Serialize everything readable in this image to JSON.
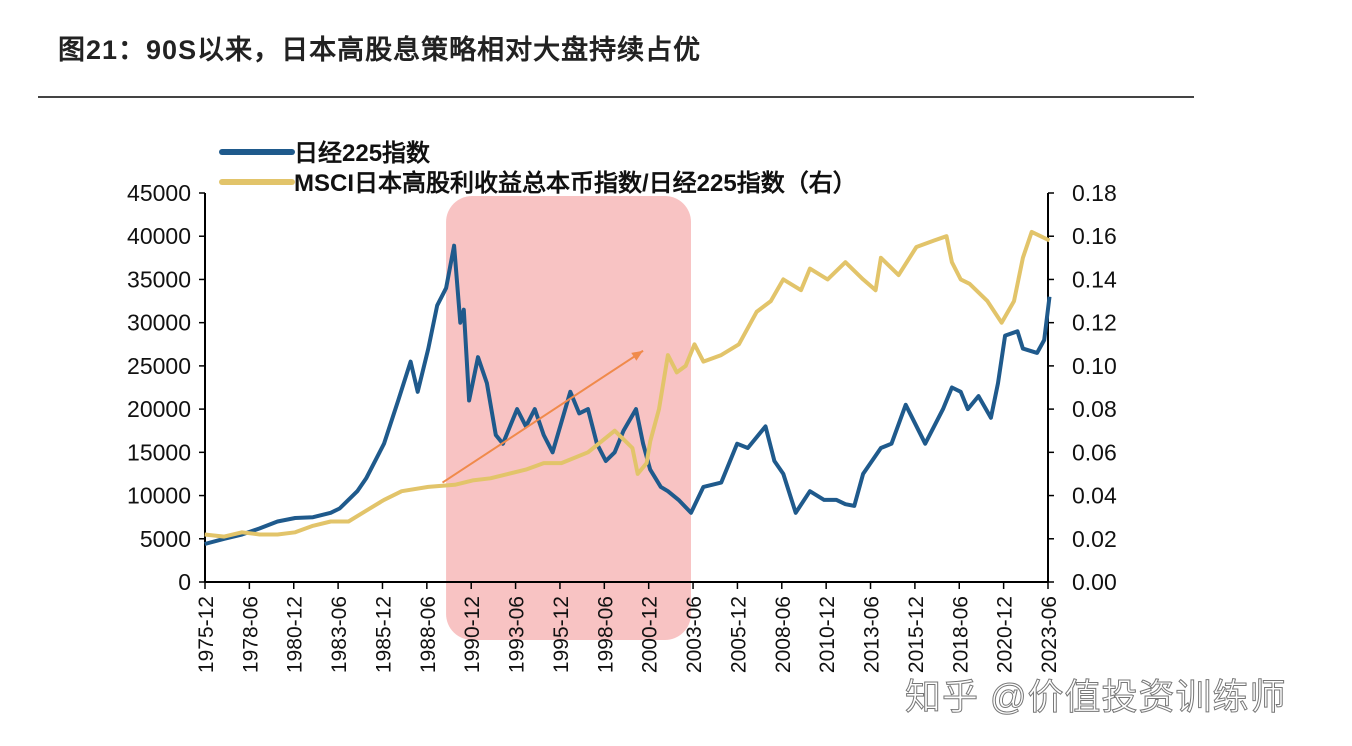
{
  "header": {
    "title": "图21：90S以来，日本高股息策略相对大盘持续占优"
  },
  "watermark": "知乎 @价值投资训练师",
  "chart_data": {
    "type": "line",
    "title": "图21：90S以来，日本高股息策略相对大盘持续占优",
    "xlabel": "",
    "ylabel": "",
    "y2label": "",
    "x_ticks": [
      "1975-12",
      "1978-06",
      "1980-12",
      "1983-06",
      "1985-12",
      "1988-06",
      "1990-12",
      "1993-06",
      "1995-12",
      "1998-06",
      "2000-12",
      "2003-06",
      "2005-12",
      "2008-06",
      "2010-12",
      "2013-06",
      "2015-12",
      "2018-06",
      "2020-12",
      "2023-06"
    ],
    "xlim": [
      "1975-12",
      "2023-06"
    ],
    "ylim": [
      0,
      45000
    ],
    "y_ticks": [
      "0",
      "5000",
      "10000",
      "15000",
      "20000",
      "25000",
      "30000",
      "35000",
      "40000",
      "45000"
    ],
    "y2lim": [
      0,
      0.18
    ],
    "y2_ticks": [
      "0.00",
      "0.02",
      "0.04",
      "0.06",
      "0.08",
      "0.10",
      "0.12",
      "0.14",
      "0.16",
      "0.18"
    ],
    "grid": false,
    "legend_placement": "top-left",
    "series": [
      {
        "name": "日经225指数",
        "axis": "left",
        "color": "#1f5a8c",
        "points": [
          [
            1975.9,
            4400
          ],
          [
            1977,
            5000
          ],
          [
            1978,
            5500
          ],
          [
            1979,
            6200
          ],
          [
            1980,
            7000
          ],
          [
            1981,
            7400
          ],
          [
            1982,
            7500
          ],
          [
            1983,
            8000
          ],
          [
            1983.5,
            8500
          ],
          [
            1984.5,
            10500
          ],
          [
            1985,
            12000
          ],
          [
            1986,
            16000
          ],
          [
            1986.8,
            21000
          ],
          [
            1987.5,
            25500
          ],
          [
            1987.9,
            22000
          ],
          [
            1988.5,
            27000
          ],
          [
            1989,
            32000
          ],
          [
            1989.5,
            34000
          ],
          [
            1989.95,
            38900
          ],
          [
            1990.3,
            30000
          ],
          [
            1990.5,
            31500
          ],
          [
            1990.8,
            21000
          ],
          [
            1991.3,
            26000
          ],
          [
            1991.8,
            23000
          ],
          [
            1992.3,
            17000
          ],
          [
            1992.7,
            16000
          ],
          [
            1993.5,
            20000
          ],
          [
            1994,
            18000
          ],
          [
            1994.5,
            20000
          ],
          [
            1995,
            17000
          ],
          [
            1995.5,
            15000
          ],
          [
            1996.5,
            22000
          ],
          [
            1997,
            19500
          ],
          [
            1997.5,
            20000
          ],
          [
            1998,
            16000
          ],
          [
            1998.5,
            14000
          ],
          [
            1999,
            15000
          ],
          [
            1999.5,
            17500
          ],
          [
            2000.2,
            20000
          ],
          [
            2000.6,
            16000
          ],
          [
            2001,
            13000
          ],
          [
            2001.6,
            11000
          ],
          [
            2002,
            10500
          ],
          [
            2002.6,
            9500
          ],
          [
            2003.3,
            8000
          ],
          [
            2004,
            11000
          ],
          [
            2005,
            11500
          ],
          [
            2005.9,
            16000
          ],
          [
            2006.5,
            15500
          ],
          [
            2007.5,
            18000
          ],
          [
            2008,
            14000
          ],
          [
            2008.5,
            12500
          ],
          [
            2009.2,
            8000
          ],
          [
            2010,
            10500
          ],
          [
            2010.8,
            9500
          ],
          [
            2011.5,
            9500
          ],
          [
            2012,
            9000
          ],
          [
            2012.5,
            8800
          ],
          [
            2013,
            12500
          ],
          [
            2014,
            15500
          ],
          [
            2014.6,
            16000
          ],
          [
            2015.4,
            20500
          ],
          [
            2016.5,
            16000
          ],
          [
            2017.5,
            20000
          ],
          [
            2018,
            22500
          ],
          [
            2018.5,
            22000
          ],
          [
            2018.9,
            20000
          ],
          [
            2019.5,
            21500
          ],
          [
            2020.2,
            19000
          ],
          [
            2020.6,
            23000
          ],
          [
            2021,
            28500
          ],
          [
            2021.7,
            29000
          ],
          [
            2022,
            27000
          ],
          [
            2022.8,
            26500
          ],
          [
            2023.2,
            28000
          ],
          [
            2023.5,
            33000
          ]
        ]
      },
      {
        "name": "MSCI日本高股利收益总本币指数/日经225指数（右）",
        "axis": "right",
        "color": "#e2c46a",
        "points": [
          [
            1975.9,
            0.022
          ],
          [
            1977,
            0.021
          ],
          [
            1978,
            0.023
          ],
          [
            1979,
            0.022
          ],
          [
            1980,
            0.022
          ],
          [
            1981,
            0.023
          ],
          [
            1982,
            0.026
          ],
          [
            1983,
            0.028
          ],
          [
            1984,
            0.028
          ],
          [
            1985,
            0.033
          ],
          [
            1986,
            0.038
          ],
          [
            1987,
            0.042
          ],
          [
            1988.5,
            0.044
          ],
          [
            1990,
            0.045
          ],
          [
            1991,
            0.047
          ],
          [
            1992,
            0.048
          ],
          [
            1993,
            0.05
          ],
          [
            1994,
            0.052
          ],
          [
            1995,
            0.055
          ],
          [
            1996,
            0.055
          ],
          [
            1997.5,
            0.06
          ],
          [
            1999,
            0.07
          ],
          [
            2000,
            0.062
          ],
          [
            2000.3,
            0.05
          ],
          [
            2000.8,
            0.055
          ],
          [
            2001,
            0.065
          ],
          [
            2001.5,
            0.08
          ],
          [
            2002,
            0.105
          ],
          [
            2002.5,
            0.097
          ],
          [
            2003,
            0.1
          ],
          [
            2003.5,
            0.11
          ],
          [
            2004,
            0.102
          ],
          [
            2005,
            0.105
          ],
          [
            2006,
            0.11
          ],
          [
            2007,
            0.125
          ],
          [
            2007.8,
            0.13
          ],
          [
            2008.5,
            0.14
          ],
          [
            2009.5,
            0.135
          ],
          [
            2010,
            0.145
          ],
          [
            2011,
            0.14
          ],
          [
            2012,
            0.148
          ],
          [
            2013,
            0.14
          ],
          [
            2013.7,
            0.135
          ],
          [
            2014,
            0.15
          ],
          [
            2015,
            0.142
          ],
          [
            2016,
            0.155
          ],
          [
            2017,
            0.158
          ],
          [
            2017.7,
            0.16
          ],
          [
            2018,
            0.148
          ],
          [
            2018.5,
            0.14
          ],
          [
            2019,
            0.138
          ],
          [
            2020,
            0.13
          ],
          [
            2020.8,
            0.12
          ],
          [
            2021.5,
            0.13
          ],
          [
            2022,
            0.15
          ],
          [
            2022.5,
            0.162
          ],
          [
            2023,
            0.16
          ],
          [
            2023.5,
            0.158
          ]
        ]
      }
    ],
    "annotations": {
      "highlight_range": [
        1989.5,
        2003.3
      ],
      "highlight_color": "#f4a3a3",
      "arrow": {
        "from": [
          1989.3,
          0.046
        ],
        "to": [
          2000.6,
          0.107
        ],
        "axis": "right",
        "color": "#f08a4b"
      }
    }
  }
}
